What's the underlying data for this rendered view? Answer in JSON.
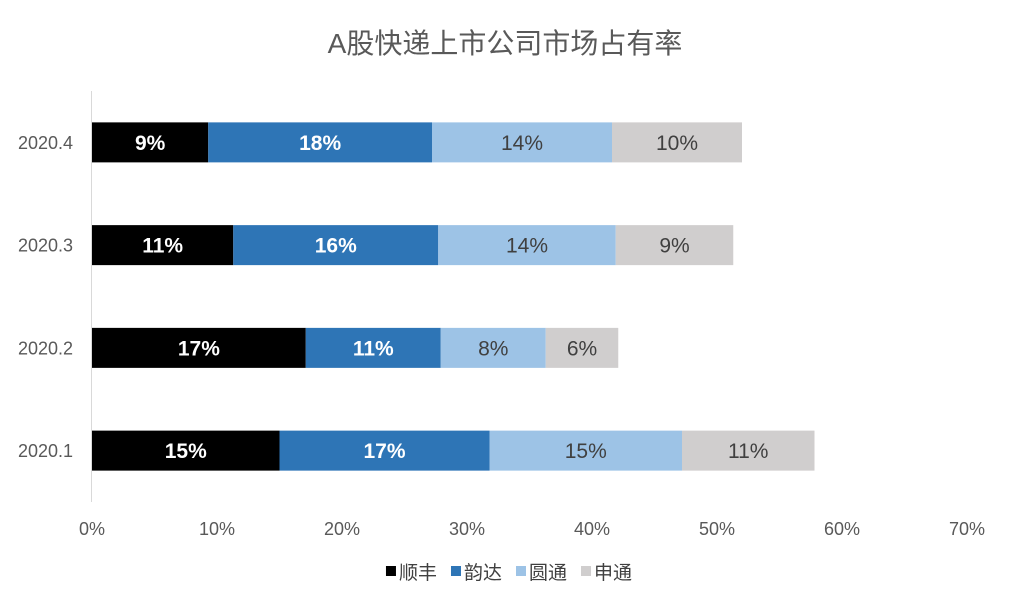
{
  "chart_data": {
    "type": "bar",
    "orientation": "horizontal",
    "stacked": true,
    "title": "A股快递上市公司市场占有率",
    "categories": [
      "2020.4",
      "2020.3",
      "2020.2",
      "2020.1"
    ],
    "series": [
      {
        "name": "顺丰",
        "color": "#000000",
        "label_color": "#ffffff",
        "values": [
          9.3,
          11.3,
          17.1,
          15.0
        ],
        "labels": [
          "9%",
          "11%",
          "17%",
          "15%"
        ]
      },
      {
        "name": "韵达",
        "color": "#2E75B6",
        "label_color": "#ffffff",
        "values": [
          17.9,
          16.4,
          10.8,
          16.8
        ],
        "labels": [
          "18%",
          "16%",
          "11%",
          "17%"
        ]
      },
      {
        "name": "圆通",
        "color": "#9DC3E6",
        "label_color": "#404040",
        "values": [
          14.4,
          14.2,
          8.4,
          15.4
        ],
        "labels": [
          "14%",
          "14%",
          "8%",
          "15%"
        ]
      },
      {
        "name": "申通",
        "color": "#D0CECE",
        "label_color": "#404040",
        "values": [
          10.4,
          9.4,
          5.8,
          10.6
        ],
        "labels": [
          "10%",
          "9%",
          "6%",
          "11%"
        ]
      }
    ],
    "xlim": [
      0,
      70
    ],
    "xtick_values": [
      0,
      10,
      20,
      30,
      40,
      50,
      60,
      70
    ],
    "xtick_labels": [
      "0%",
      "10%",
      "20%",
      "30%",
      "40%",
      "50%",
      "60%",
      "70%"
    ],
    "grid": false,
    "legend": "bottom"
  }
}
